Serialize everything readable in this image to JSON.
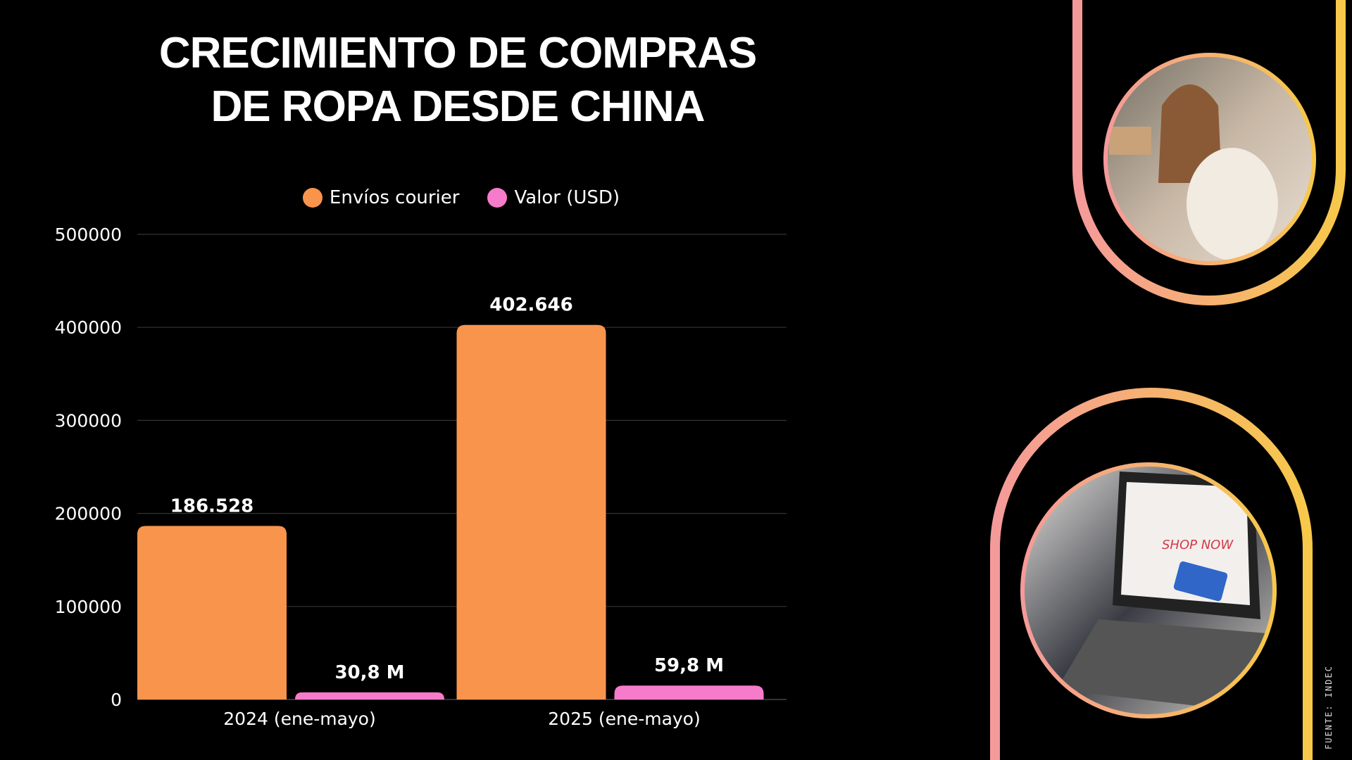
{
  "title_lines": [
    "CRECIMIENTO DE COMPRAS",
    "DE ROPA DESDE CHINA"
  ],
  "source": "FUENTE: INDEC",
  "chart_data": {
    "type": "bar",
    "title": "CRECIMIENTO DE COMPRAS DE ROPA DESDE CHINA",
    "categories": [
      "2024 (ene-mayo)",
      "2025 (ene-mayo)"
    ],
    "ylim": [
      0,
      500000
    ],
    "yticks": [
      "0",
      "100000",
      "200000",
      "300000",
      "400000",
      "500000"
    ],
    "grid": true,
    "legend_position": "top",
    "series": [
      {
        "name": "Envíos courier",
        "color": "#F9944C",
        "values": [
          186528,
          402646
        ],
        "labels": [
          "186.528",
          "402.646"
        ]
      },
      {
        "name": "Valor (USD)",
        "color": "#F77BCB",
        "values": [
          7700,
          14950
        ],
        "labels": [
          "30,8 M",
          "59,8 M"
        ]
      }
    ]
  },
  "colors": {
    "background": "#000000",
    "frame_yellow": "#F7C84A",
    "frame_pink": "#F59A9A"
  },
  "photos": [
    {
      "subject": "woman-holding-sweater"
    },
    {
      "subject": "laptop-shop-now-credit-card"
    }
  ]
}
